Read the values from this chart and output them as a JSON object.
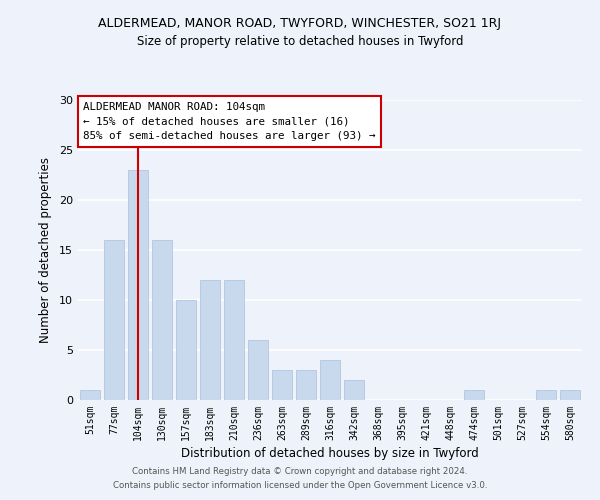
{
  "title": "ALDERMEAD, MANOR ROAD, TWYFORD, WINCHESTER, SO21 1RJ",
  "subtitle": "Size of property relative to detached houses in Twyford",
  "xlabel": "Distribution of detached houses by size in Twyford",
  "ylabel": "Number of detached properties",
  "bin_labels": [
    "51sqm",
    "77sqm",
    "104sqm",
    "130sqm",
    "157sqm",
    "183sqm",
    "210sqm",
    "236sqm",
    "263sqm",
    "289sqm",
    "316sqm",
    "342sqm",
    "368sqm",
    "395sqm",
    "421sqm",
    "448sqm",
    "474sqm",
    "501sqm",
    "527sqm",
    "554sqm",
    "580sqm"
  ],
  "bar_values": [
    1,
    16,
    23,
    16,
    10,
    12,
    12,
    6,
    3,
    3,
    4,
    2,
    0,
    0,
    0,
    0,
    1,
    0,
    0,
    1,
    1
  ],
  "bar_color": "#c8d9ee",
  "bar_edge_color": "#a8c0de",
  "vline_index": 2,
  "vline_color": "#cc0000",
  "annotation_line1": "ALDERMEAD MANOR ROAD: 104sqm",
  "annotation_line2": "← 15% of detached houses are smaller (16)",
  "annotation_line3": "85% of semi-detached houses are larger (93) →",
  "annotation_box_color": "#ffffff",
  "annotation_box_edge": "#cc0000",
  "ylim": [
    0,
    30
  ],
  "yticks": [
    0,
    5,
    10,
    15,
    20,
    25,
    30
  ],
  "footer1": "Contains HM Land Registry data © Crown copyright and database right 2024.",
  "footer2": "Contains public sector information licensed under the Open Government Licence v3.0.",
  "background_color": "#eef2fa",
  "grid_color": "#ffffff"
}
